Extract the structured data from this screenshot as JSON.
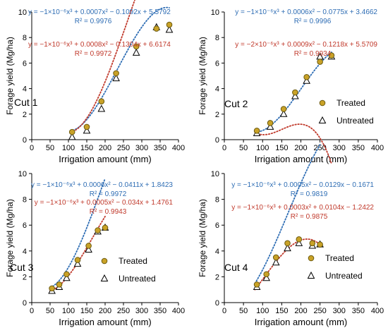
{
  "colors": {
    "treated_marker": "#C9A227",
    "treated_stroke": "#6b5a10",
    "untreated_marker": "#ffffff",
    "blue_eq": "#2E6DB4",
    "red_eq": "#C0392B",
    "axis": "#000000"
  },
  "chart_data": [
    {
      "type": "scatter",
      "panel_label": "Cut 1",
      "xlabel": "Irrigation amount (mm)",
      "ylabel": "Forage yield (Mg/ha)",
      "xlim": [
        0,
        400
      ],
      "ylim": [
        0,
        10
      ],
      "xticks": [
        0,
        50,
        100,
        150,
        200,
        250,
        300,
        350,
        400
      ],
      "yticks": [
        0,
        2,
        4,
        6,
        8,
        10
      ],
      "legend": {
        "show": false
      },
      "series": [
        {
          "name": "Treated",
          "marker": "circle",
          "x": [
            110,
            150,
            190,
            230,
            285,
            340,
            375
          ],
          "y": [
            0.6,
            1.0,
            3.0,
            5.2,
            7.3,
            8.7,
            9.0
          ]
        },
        {
          "name": "Untreated",
          "marker": "triangle",
          "x": [
            110,
            150,
            190,
            230,
            285,
            340,
            375
          ],
          "y": [
            0.2,
            0.7,
            2.4,
            4.8,
            6.8,
            8.8,
            8.6
          ]
        }
      ],
      "fits": [
        {
          "color": "blue",
          "coef": [
            -1e-06,
            0.0007,
            -0.1092,
            5.5792
          ],
          "xrange": [
            105,
            375
          ],
          "equation": "y = −1×10⁻⁶x³ + 0.0007x² − 0.1092x + 5.5792",
          "r2": "R² = 0.9976"
        },
        {
          "color": "red",
          "coef": [
            -1e-06,
            0.0008,
            -0.1304,
            6.6174
          ],
          "xrange": [
            105,
            375
          ],
          "equation": "y = −1×10⁻⁶x³ + 0.0008x² − 0.1304x + 6.6174",
          "r2": "R² = 0.9972"
        }
      ]
    },
    {
      "type": "scatter",
      "panel_label": "Cut 2",
      "xlabel": "Irrigation amount (mm)",
      "ylabel": "Forage yield (Mg/ha)",
      "xlim": [
        0,
        400
      ],
      "ylim": [
        0,
        10
      ],
      "xticks": [
        0,
        50,
        100,
        150,
        200,
        250,
        300,
        350,
        400
      ],
      "yticks": [
        0,
        2,
        4,
        6,
        8,
        10
      ],
      "legend": {
        "show": true,
        "position": "right",
        "items": [
          "Treated",
          "Untreated"
        ]
      },
      "series": [
        {
          "name": "Treated",
          "marker": "circle",
          "x": [
            85,
            120,
            155,
            185,
            215,
            250,
            280
          ],
          "y": [
            0.7,
            1.3,
            2.4,
            3.7,
            4.9,
            6.1,
            6.6
          ]
        },
        {
          "name": "Untreated",
          "marker": "triangle",
          "x": [
            85,
            120,
            155,
            185,
            215,
            250,
            280
          ],
          "y": [
            0.5,
            1.0,
            2.0,
            3.4,
            4.6,
            6.5,
            6.5
          ]
        }
      ],
      "fits": [
        {
          "color": "blue",
          "coef": [
            -1e-06,
            0.0006,
            -0.0775,
            3.4662
          ],
          "xrange": [
            80,
            280
          ],
          "equation": "y = −1×10⁻⁶x³ + 0.0006x² − 0.0775x + 3.4662",
          "r2": "R² = 0.9996"
        },
        {
          "color": "red",
          "coef": [
            -2e-06,
            0.0009,
            -0.1218,
            5.5709
          ],
          "xrange": [
            80,
            280
          ],
          "equation": "y = −2×10⁻⁶x³ + 0.0009x² − 0.1218x + 5.5709",
          "r2": "R² = 0.9934"
        }
      ]
    },
    {
      "type": "scatter",
      "panel_label": "Cut 3",
      "xlabel": "Irrigation amount (mm)",
      "ylabel": "Forage yield (Mg/ha)",
      "xlim": [
        0,
        400
      ],
      "ylim": [
        0,
        10
      ],
      "xticks": [
        0,
        50,
        100,
        150,
        200,
        250,
        300,
        350,
        400
      ],
      "yticks": [
        0,
        2,
        4,
        6,
        8,
        10
      ],
      "legend": {
        "show": true,
        "position": "right",
        "items": [
          "Treated",
          "Untreated"
        ]
      },
      "series": [
        {
          "name": "Treated",
          "marker": "circle",
          "x": [
            55,
            75,
            95,
            125,
            155,
            180,
            200
          ],
          "y": [
            1.1,
            1.4,
            2.2,
            3.3,
            4.4,
            5.6,
            5.8
          ]
        },
        {
          "name": "Untreated",
          "marker": "triangle",
          "x": [
            55,
            75,
            95,
            125,
            155,
            180,
            200
          ],
          "y": [
            0.9,
            1.2,
            1.9,
            3.0,
            4.1,
            5.5,
            5.8
          ]
        }
      ],
      "fits": [
        {
          "color": "blue",
          "coef": [
            -1e-06,
            0.0006,
            -0.0411,
            1.8423
          ],
          "xrange": [
            50,
            200
          ],
          "equation": "y = −1×10⁻⁶x³ + 0.0006x² − 0.0411x + 1.8423",
          "r2": "R² = 0.9972"
        },
        {
          "color": "red",
          "coef": [
            -1e-06,
            0.0005,
            -0.034,
            1.4761
          ],
          "xrange": [
            50,
            200
          ],
          "equation": "y = −1×10⁻⁶x³ + 0.0005x² − 0.034x + 1.4761",
          "r2": "R² = 0.9943"
        }
      ]
    },
    {
      "type": "scatter",
      "panel_label": "Cut 4",
      "xlabel": "Irrigation amount (mm)",
      "ylabel": "Forage yield (Mg/ha)",
      "xlim": [
        0,
        400
      ],
      "ylim": [
        0,
        10
      ],
      "xticks": [
        0,
        50,
        100,
        150,
        200,
        250,
        300,
        350,
        400
      ],
      "yticks": [
        0,
        2,
        4,
        6,
        8,
        10
      ],
      "legend": {
        "show": true,
        "position": "right",
        "items": [
          "Treated",
          "Untreated"
        ]
      },
      "series": [
        {
          "name": "Treated",
          "marker": "circle",
          "x": [
            85,
            110,
            135,
            165,
            195,
            230,
            250
          ],
          "y": [
            1.4,
            2.2,
            3.5,
            4.6,
            4.9,
            4.6,
            4.5
          ]
        },
        {
          "name": "Untreated",
          "marker": "triangle",
          "x": [
            85,
            110,
            135,
            165,
            195,
            230,
            250
          ],
          "y": [
            1.2,
            1.9,
            3.1,
            4.2,
            4.6,
            4.4,
            4.5
          ]
        }
      ],
      "fits": [
        {
          "color": "blue",
          "coef": [
            -1e-06,
            0.0005,
            -0.0129,
            -0.1671
          ],
          "xrange": [
            80,
            250
          ],
          "equation": "y = −1×10⁻⁶x³ + 0.0005x² − 0.0129x − 0.1671",
          "r2": "R² = 0.9819"
        },
        {
          "color": "red",
          "coef": [
            -1e-06,
            0.0003,
            0.0104,
            -1.2422
          ],
          "xrange": [
            80,
            250
          ],
          "equation": "y = −1×10⁻⁶x³ + 0.0003x² + 0.0104x − 1.2422",
          "r2": "R² = 0.9875"
        }
      ]
    }
  ]
}
